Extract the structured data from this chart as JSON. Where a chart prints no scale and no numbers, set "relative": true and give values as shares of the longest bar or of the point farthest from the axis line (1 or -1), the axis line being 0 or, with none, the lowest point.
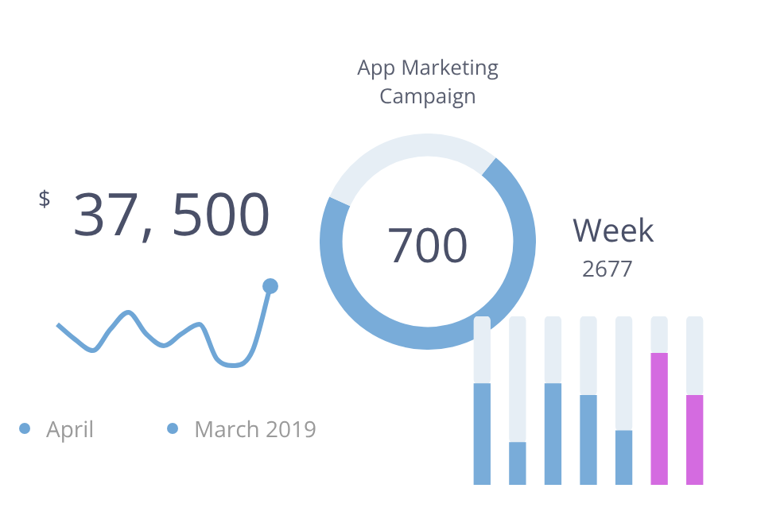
{
  "chart_data": [
    {
      "type": "line",
      "title": "$ 37, 500",
      "relative": true,
      "marker": "none",
      "legend": false,
      "categories": [
        null,
        null,
        null,
        null,
        null,
        null,
        null,
        null,
        null,
        null,
        null,
        null,
        null
      ],
      "series": [
        {
          "color": "#6fa6d6",
          "values": [
            0.52,
            0.33,
            0.19,
            0.46,
            0.67,
            0.4,
            0.25,
            0.4,
            0.52,
            0.08,
            0,
            0.19,
            1
          ]
        }
      ],
      "annotations": [
        "April",
        "March 2019"
      ]
    },
    {
      "type": "donut",
      "title": "App Marketing Campaign",
      "categories": [
        null,
        null
      ],
      "values": [
        71,
        29
      ],
      "colors": [
        "#79acd9",
        "#e6eef5"
      ],
      "annotations": [
        "700"
      ],
      "legend": false
    },
    {
      "type": "bar",
      "title": "Week",
      "subtitle": "2677",
      "stacked": true,
      "relative": true,
      "legend": false,
      "categories": [
        null,
        null,
        null,
        null,
        null,
        null,
        null
      ],
      "series": [
        {
          "colors": [
            "#79acd9",
            "#79acd9",
            "#79acd9",
            "#79acd9",
            "#79acd9",
            "#d46be0",
            "#d46be0"
          ],
          "values": [
            0.6,
            0.25,
            0.6,
            0.53,
            0.32,
            0.78,
            0.53
          ]
        },
        {
          "color": "#e6eef5",
          "values": [
            0.4,
            0.75,
            0.4,
            0.47,
            0.68,
            0.22,
            0.47
          ]
        }
      ]
    }
  ]
}
